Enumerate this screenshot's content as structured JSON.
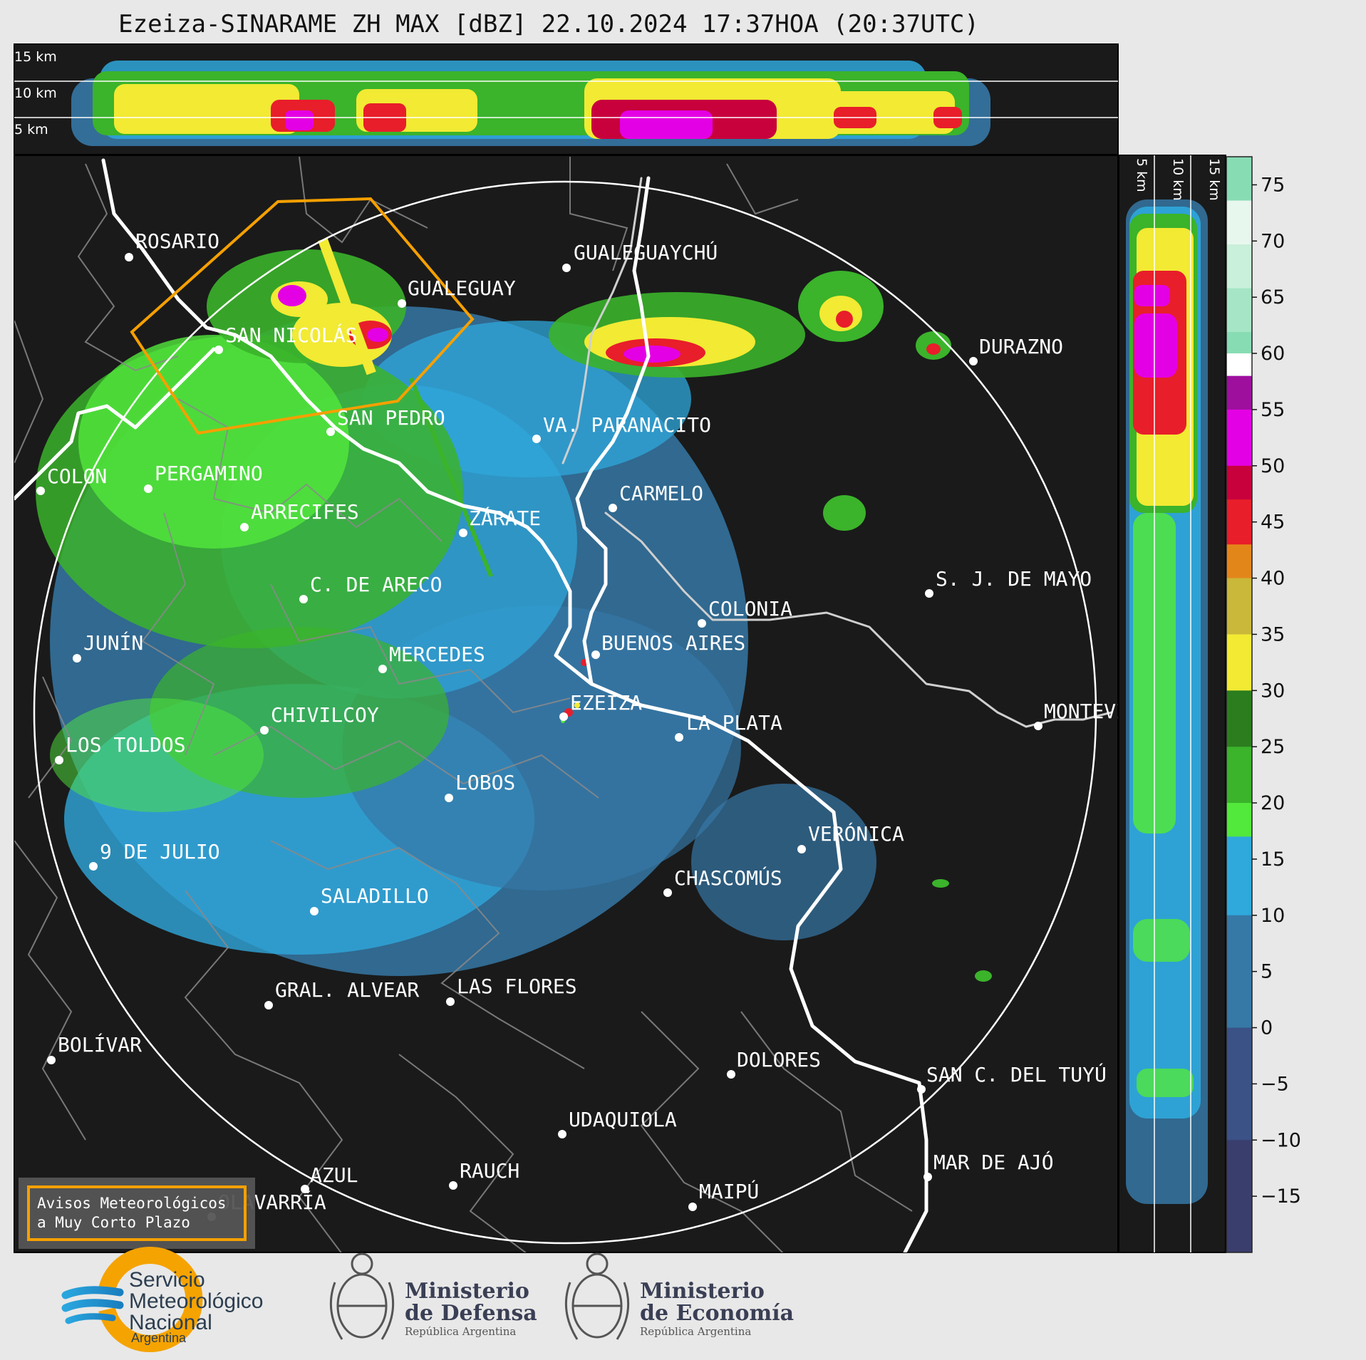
{
  "title": "Ezeiza-SINARAME ZH MAX [dBZ] 22.10.2024 17:37HOA (20:37UTC)",
  "top_profile_labels": [
    "15 km",
    "10 km",
    "5 km"
  ],
  "side_profile_labels": [
    "5 km",
    "10 km",
    "15 km"
  ],
  "colorbar": {
    "ticks": [
      "75",
      "70",
      "65",
      "60",
      "55",
      "50",
      "45",
      "40",
      "35",
      "30",
      "25",
      "20",
      "15",
      "10",
      "5",
      "0",
      "−5",
      "−10",
      "−15"
    ],
    "stops": [
      {
        "from": 58,
        "color": "#ffffff"
      },
      {
        "from": 55,
        "color": "#9e0f9e"
      },
      {
        "from": 50,
        "color": "#e400e4"
      },
      {
        "from": 47,
        "color": "#c8003c"
      },
      {
        "from": 43,
        "color": "#e81e2a"
      },
      {
        "from": 40,
        "color": "#e3861a"
      },
      {
        "from": 35,
        "color": "#c9b83a"
      },
      {
        "from": 30,
        "color": "#f2ea33"
      },
      {
        "from": 25,
        "color": "#2c7d1e"
      },
      {
        "from": 20,
        "color": "#3bb32b"
      },
      {
        "from": 17,
        "color": "#52e83c"
      },
      {
        "from": 10,
        "color": "#2fa8dc"
      },
      {
        "from": 0,
        "color": "#3678a6"
      },
      {
        "from": -10,
        "color": "#3a5286"
      },
      {
        "from": -20,
        "color": "#3a3e6c"
      }
    ],
    "top_colors": [
      "#ffffff",
      "#e8f7ee",
      "#c9f0da",
      "#a6e6c6",
      "#88dcb4"
    ]
  },
  "cities": [
    {
      "name": "ROSARIO"
    },
    {
      "name": "GUALEGUAYCHÚ"
    },
    {
      "name": "GUALEGUAY"
    },
    {
      "name": "SAN NICOLÁS"
    },
    {
      "name": "DURAZNO"
    },
    {
      "name": "SAN PEDRO"
    },
    {
      "name": "VA. PARANACITO"
    },
    {
      "name": "COLON"
    },
    {
      "name": "PERGAMINO"
    },
    {
      "name": "CARMELO"
    },
    {
      "name": "ARRECIFES"
    },
    {
      "name": "ZÁRATE"
    },
    {
      "name": "S. J. DE MAYO"
    },
    {
      "name": "C. DE ARECO"
    },
    {
      "name": "COLONIA"
    },
    {
      "name": "JUNÍN"
    },
    {
      "name": "BUENOS AIRES"
    },
    {
      "name": "MERCEDES"
    },
    {
      "name": "EZEIZA"
    },
    {
      "name": "MONTEVIDEO"
    },
    {
      "name": "CHIVILCOY"
    },
    {
      "name": "LA PLATA"
    },
    {
      "name": "LOS TOLDOS"
    },
    {
      "name": "LOBOS"
    },
    {
      "name": "VERÓNICA"
    },
    {
      "name": "9 DE JULIO"
    },
    {
      "name": "CHASCOMÚS"
    },
    {
      "name": "SALADILLO"
    },
    {
      "name": "GRAL. ALVEAR"
    },
    {
      "name": "LAS FLORES"
    },
    {
      "name": "BOLÍVAR"
    },
    {
      "name": "DOLORES"
    },
    {
      "name": "SAN C. DEL TUYÚ"
    },
    {
      "name": "UDAQUIOLA"
    },
    {
      "name": "RAUCH"
    },
    {
      "name": "MAR DE AJÓ"
    },
    {
      "name": "AZUL"
    },
    {
      "name": "MAIPÚ"
    },
    {
      "name": "OLAVARRÍA"
    }
  ],
  "warning_box": {
    "line1": "Avisos Meteorológicos",
    "line2": "a Muy Corto Plazo"
  },
  "logos": {
    "smn": {
      "line1": "Servicio",
      "line2": "Meteorológico",
      "line3": "Nacional",
      "line4": "Argentina"
    },
    "defensa": {
      "line1": "Ministerio",
      "line2": "de Defensa",
      "line3": "República Argentina"
    },
    "economia": {
      "line1": "Ministerio",
      "line2": "de Economía",
      "line3": "República Argentina"
    }
  },
  "colors": {
    "map_bg": "#1a1a1a",
    "warning_polygon": "#f5a000",
    "range_ring": "#ffffff",
    "coastline": "#ffffff",
    "borders": "#8a8a8a",
    "smn_orange": "#f5a300",
    "smn_blue": "#2aa6df"
  }
}
